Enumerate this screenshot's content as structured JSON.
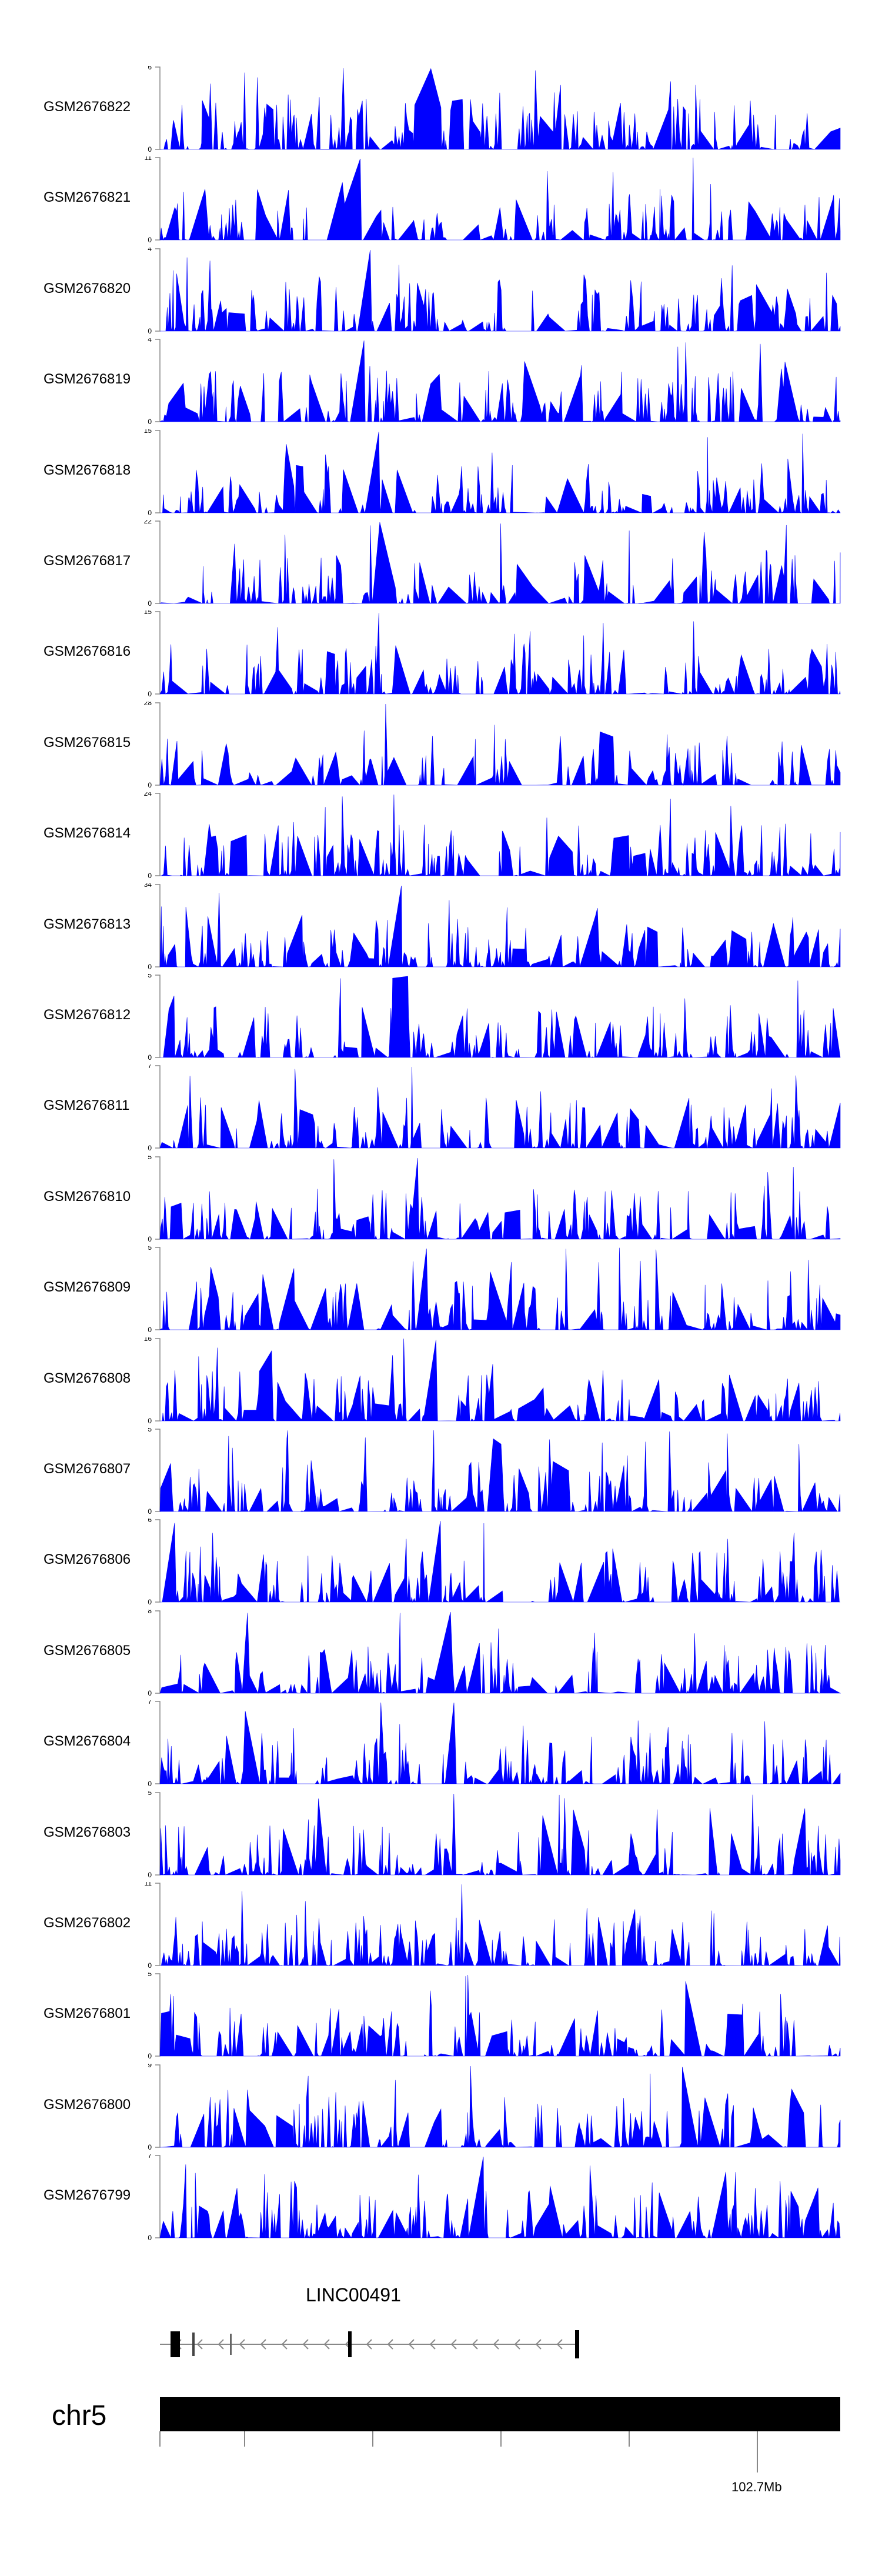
{
  "chart_data": {
    "type": "area",
    "color": "#0000ff",
    "tracks": [
      {
        "name": "GSM2676822",
        "ymax": "6",
        "ymin": "0",
        "seed": 11
      },
      {
        "name": "GSM2676821",
        "ymax": "11",
        "ymin": "0",
        "seed": 23
      },
      {
        "name": "GSM2676820",
        "ymax": "4",
        "ymin": "0",
        "seed": 37
      },
      {
        "name": "GSM2676819",
        "ymax": "4",
        "ymin": "0",
        "seed": 41
      },
      {
        "name": "GSM2676818",
        "ymax": "15",
        "ymin": "0",
        "seed": 53
      },
      {
        "name": "GSM2676817",
        "ymax": "22",
        "ymin": "0",
        "seed": 67
      },
      {
        "name": "GSM2676816",
        "ymax": "15",
        "ymin": "0",
        "seed": 71
      },
      {
        "name": "GSM2676815",
        "ymax": "28",
        "ymin": "0",
        "seed": 83
      },
      {
        "name": "GSM2676814",
        "ymax": "24",
        "ymin": "0",
        "seed": 97
      },
      {
        "name": "GSM2676813",
        "ymax": "34",
        "ymin": "0",
        "seed": 101
      },
      {
        "name": "GSM2676812",
        "ymax": "5",
        "ymin": "0",
        "seed": 113
      },
      {
        "name": "GSM2676811",
        "ymax": "7",
        "ymin": "0",
        "seed": 127
      },
      {
        "name": "GSM2676810",
        "ymax": "5",
        "ymin": "0",
        "seed": 131
      },
      {
        "name": "GSM2676809",
        "ymax": "5",
        "ymin": "0",
        "seed": 149
      },
      {
        "name": "GSM2676808",
        "ymax": "16",
        "ymin": "0",
        "seed": 151
      },
      {
        "name": "GSM2676807",
        "ymax": "5",
        "ymin": "0",
        "seed": 163
      },
      {
        "name": "GSM2676806",
        "ymax": "6",
        "ymin": "0",
        "seed": 173
      },
      {
        "name": "GSM2676805",
        "ymax": "8",
        "ymin": "0",
        "seed": 181
      },
      {
        "name": "GSM2676804",
        "ymax": "7",
        "ymin": "0",
        "seed": 191
      },
      {
        "name": "GSM2676803",
        "ymax": "5",
        "ymin": "0",
        "seed": 197
      },
      {
        "name": "GSM2676802",
        "ymax": "11",
        "ymin": "0",
        "seed": 211
      },
      {
        "name": "GSM2676801",
        "ymax": "5",
        "ymin": "0",
        "seed": 223
      },
      {
        "name": "GSM2676800",
        "ymax": "9",
        "ymin": "0",
        "seed": 227
      },
      {
        "name": "GSM2676799",
        "ymax": "7",
        "ymin": "0",
        "seed": 239
      }
    ],
    "gene": {
      "name": "LINC00491",
      "strand": "-"
    },
    "chromosome": "chr5",
    "axis": {
      "tick_labels": [
        "102.7Mb"
      ]
    }
  }
}
